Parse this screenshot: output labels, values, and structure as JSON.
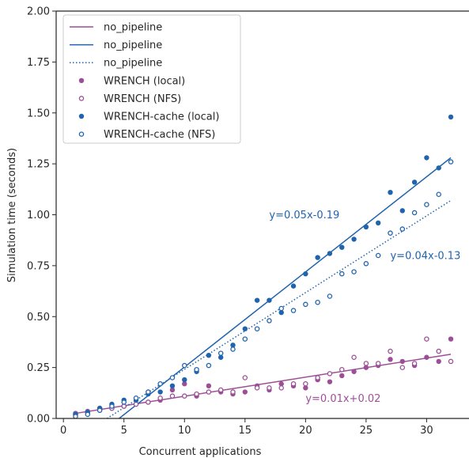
{
  "chart_data": {
    "type": "scatter",
    "xlabel": "Concurrent applications",
    "ylabel": "Simulation time (seconds)",
    "xlim": [
      -0.6,
      33.5
    ],
    "ylim": [
      0,
      2.0
    ],
    "xticks": [
      0,
      5,
      10,
      15,
      20,
      25,
      30
    ],
    "yticks": [
      0.0,
      0.25,
      0.5,
      0.75,
      1.0,
      1.25,
      1.5,
      1.75,
      2.0
    ],
    "grid": false,
    "legend_position": "top-left",
    "colors": {
      "purple": "#9c4f96",
      "blue": "#1f64ad"
    },
    "lines": [
      {
        "name": "no_pipeline",
        "color": "#9c4f96",
        "style": "solid",
        "x": [
          1,
          32
        ],
        "y": [
          0.025,
          0.315
        ]
      },
      {
        "name": "no_pipeline",
        "color": "#1f64ad",
        "style": "solid",
        "x": [
          4.6,
          32
        ],
        "y": [
          0.0,
          1.28
        ]
      },
      {
        "name": "no_pipeline",
        "color": "#1f64ad",
        "style": "dotted",
        "x": [
          3.6,
          32
        ],
        "y": [
          0.0,
          1.07
        ]
      }
    ],
    "series": [
      {
        "name": "WRENCH (local)",
        "color": "#9c4f96",
        "marker": "filled",
        "x": [
          1,
          2,
          3,
          4,
          5,
          6,
          7,
          8,
          9,
          10,
          11,
          12,
          13,
          14,
          15,
          16,
          17,
          18,
          19,
          20,
          21,
          22,
          23,
          24,
          25,
          26,
          27,
          28,
          29,
          30,
          31,
          32
        ],
        "y": [
          0.025,
          0.035,
          0.04,
          0.05,
          0.06,
          0.07,
          0.08,
          0.09,
          0.14,
          0.17,
          0.11,
          0.16,
          0.13,
          0.12,
          0.13,
          0.16,
          0.14,
          0.17,
          0.16,
          0.15,
          0.19,
          0.18,
          0.21,
          0.23,
          0.25,
          0.26,
          0.29,
          0.28,
          0.26,
          0.3,
          0.28,
          0.39
        ]
      },
      {
        "name": "WRENCH (NFS)",
        "color": "#9c4f96",
        "marker": "open",
        "x": [
          1,
          2,
          3,
          4,
          5,
          6,
          7,
          8,
          9,
          10,
          11,
          12,
          13,
          14,
          15,
          16,
          17,
          18,
          19,
          20,
          21,
          22,
          23,
          24,
          25,
          26,
          27,
          28,
          29,
          30,
          31,
          32
        ],
        "y": [
          0.02,
          0.03,
          0.05,
          0.05,
          0.06,
          0.07,
          0.08,
          0.1,
          0.11,
          0.11,
          0.12,
          0.13,
          0.14,
          0.13,
          0.2,
          0.15,
          0.15,
          0.15,
          0.17,
          0.17,
          0.2,
          0.22,
          0.24,
          0.3,
          0.27,
          0.27,
          0.33,
          0.25,
          0.27,
          0.39,
          0.33,
          0.28
        ]
      },
      {
        "name": "WRENCH-cache (local)",
        "color": "#1f64ad",
        "marker": "filled",
        "x": [
          1,
          2,
          3,
          4,
          5,
          6,
          7,
          8,
          9,
          10,
          11,
          12,
          13,
          14,
          15,
          16,
          17,
          18,
          19,
          20,
          21,
          22,
          23,
          24,
          25,
          26,
          27,
          28,
          29,
          30,
          31,
          32
        ],
        "y": [
          0.02,
          0.03,
          0.05,
          0.07,
          0.09,
          0.09,
          0.12,
          0.13,
          0.16,
          0.19,
          0.23,
          0.31,
          0.3,
          0.36,
          0.44,
          0.58,
          0.58,
          0.52,
          0.65,
          0.71,
          0.79,
          0.81,
          0.84,
          0.88,
          0.94,
          0.96,
          1.11,
          1.02,
          1.16,
          1.28,
          1.23,
          1.48
        ]
      },
      {
        "name": "WRENCH-cache (NFS)",
        "color": "#1f64ad",
        "marker": "open",
        "x": [
          1,
          2,
          3,
          4,
          5,
          6,
          7,
          8,
          9,
          10,
          11,
          12,
          13,
          14,
          15,
          16,
          17,
          18,
          19,
          20,
          21,
          22,
          23,
          24,
          25,
          26,
          27,
          28,
          29,
          30,
          31,
          32
        ],
        "y": [
          0.01,
          0.02,
          0.04,
          0.06,
          0.08,
          0.1,
          0.13,
          0.17,
          0.2,
          0.26,
          0.24,
          0.26,
          0.32,
          0.34,
          0.39,
          0.44,
          0.48,
          0.54,
          0.53,
          0.56,
          0.57,
          0.6,
          0.71,
          0.72,
          0.76,
          0.8,
          0.91,
          0.93,
          1.01,
          1.05,
          1.1,
          1.26
        ]
      }
    ],
    "annotations": [
      {
        "text": "y=0.05x-0.19",
        "x": 17,
        "y": 1.0,
        "color": "#1f64ad"
      },
      {
        "text": "y=0.04x-0.13",
        "x": 27,
        "y": 0.8,
        "color": "#1f64ad"
      },
      {
        "text": "y=0.01x+0.02",
        "x": 20,
        "y": 0.1,
        "color": "#9c4f96"
      }
    ]
  }
}
